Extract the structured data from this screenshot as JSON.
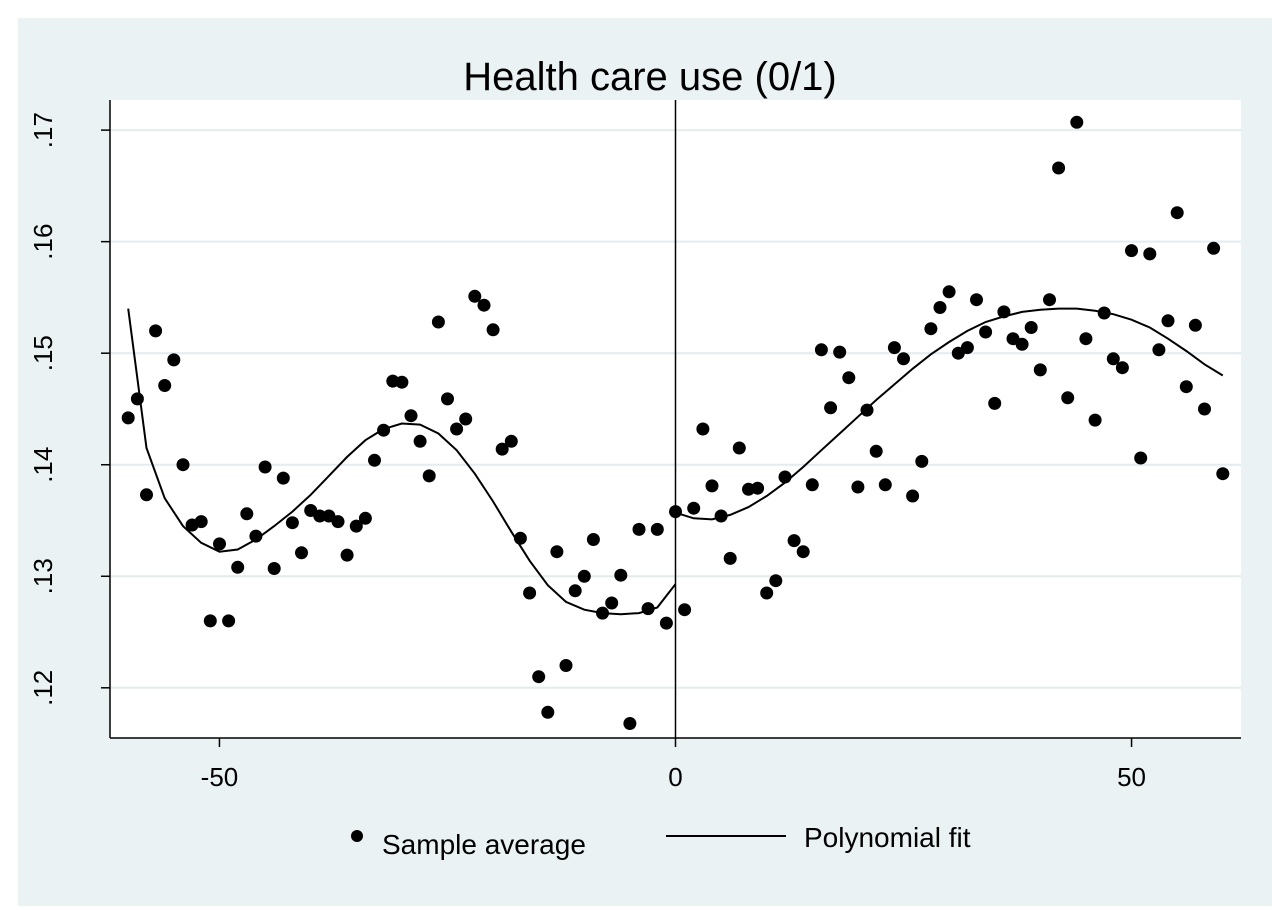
{
  "chart_data": {
    "type": "scatter",
    "title": "Health care use (0/1)",
    "xlabel": "",
    "ylabel": "",
    "xlim": [
      -62,
      62
    ],
    "ylim": [
      0.1155,
      0.1727
    ],
    "x_ticks": [
      -50,
      0,
      50
    ],
    "x_tick_labels": [
      "-50",
      "0",
      "50"
    ],
    "y_ticks": [
      0.12,
      0.13,
      0.14,
      0.15,
      0.16,
      0.17
    ],
    "y_tick_labels": [
      ".12",
      ".13",
      ".14",
      ".15",
      ".16",
      ".17"
    ],
    "y_tick_labels_rotated": true,
    "grid": "horizontal",
    "cutoff_line_x": 0,
    "legend_position": "bottom",
    "colors": {
      "background": "#eaf2f3",
      "plot_area": "#ffffff",
      "grid": "#e3ecee",
      "marks": "#000000"
    },
    "series": [
      {
        "name": "Sample average",
        "kind": "scatter",
        "points": [
          [
            -60,
            0.1442
          ],
          [
            -59,
            0.1459
          ],
          [
            -58,
            0.1373
          ],
          [
            -57,
            0.152
          ],
          [
            -56,
            0.1471
          ],
          [
            -55,
            0.1494
          ],
          [
            -54,
            0.14
          ],
          [
            -53,
            0.1346
          ],
          [
            -52,
            0.1349
          ],
          [
            -51,
            0.126
          ],
          [
            -50,
            0.1329
          ],
          [
            -49,
            0.126
          ],
          [
            -48,
            0.1308
          ],
          [
            -47,
            0.1356
          ],
          [
            -46,
            0.1336
          ],
          [
            -45,
            0.1398
          ],
          [
            -44,
            0.1307
          ],
          [
            -43,
            0.1388
          ],
          [
            -42,
            0.1348
          ],
          [
            -41,
            0.1321
          ],
          [
            -40,
            0.1359
          ],
          [
            -39,
            0.1354
          ],
          [
            -38,
            0.1354
          ],
          [
            -37,
            0.1349
          ],
          [
            -36,
            0.1319
          ],
          [
            -35,
            0.1345
          ],
          [
            -34,
            0.1352
          ],
          [
            -33,
            0.1404
          ],
          [
            -32,
            0.1431
          ],
          [
            -31,
            0.1475
          ],
          [
            -30,
            0.1474
          ],
          [
            -29,
            0.1444
          ],
          [
            -28,
            0.1421
          ],
          [
            -27,
            0.139
          ],
          [
            -26,
            0.1528
          ],
          [
            -25,
            0.1459
          ],
          [
            -24,
            0.1432
          ],
          [
            -23,
            0.1441
          ],
          [
            -22,
            0.1551
          ],
          [
            -21,
            0.1543
          ],
          [
            -20,
            0.1521
          ],
          [
            -19,
            0.1414
          ],
          [
            -18,
            0.1421
          ],
          [
            -17,
            0.1334
          ],
          [
            -16,
            0.1285
          ],
          [
            -15,
            0.121
          ],
          [
            -14,
            0.1178
          ],
          [
            -13,
            0.1322
          ],
          [
            -12,
            0.122
          ],
          [
            -11,
            0.1287
          ],
          [
            -10,
            0.13
          ],
          [
            -9,
            0.1333
          ],
          [
            -8,
            0.1267
          ],
          [
            -7,
            0.1276
          ],
          [
            -6,
            0.1301
          ],
          [
            -5,
            0.1168
          ],
          [
            -4,
            0.1342
          ],
          [
            -3,
            0.1271
          ],
          [
            -2,
            0.1342
          ],
          [
            -1,
            0.1258
          ],
          [
            0,
            0.1358
          ],
          [
            1,
            0.127
          ],
          [
            2,
            0.1361
          ],
          [
            3,
            0.1432
          ],
          [
            4,
            0.1381
          ],
          [
            5,
            0.1354
          ],
          [
            6,
            0.1316
          ],
          [
            7,
            0.1415
          ],
          [
            8,
            0.1378
          ],
          [
            9,
            0.1379
          ],
          [
            10,
            0.1285
          ],
          [
            11,
            0.1296
          ],
          [
            12,
            0.1389
          ],
          [
            13,
            0.1332
          ],
          [
            14,
            0.1322
          ],
          [
            15,
            0.1382
          ],
          [
            16,
            0.1503
          ],
          [
            17,
            0.1451
          ],
          [
            18,
            0.1501
          ],
          [
            19,
            0.1478
          ],
          [
            20,
            0.138
          ],
          [
            21,
            0.1449
          ],
          [
            22,
            0.1412
          ],
          [
            23,
            0.1382
          ],
          [
            24,
            0.1505
          ],
          [
            25,
            0.1495
          ],
          [
            26,
            0.1372
          ],
          [
            27,
            0.1403
          ],
          [
            28,
            0.1522
          ],
          [
            29,
            0.1541
          ],
          [
            30,
            0.1555
          ],
          [
            31,
            0.15
          ],
          [
            32,
            0.1505
          ],
          [
            33,
            0.1548
          ],
          [
            34,
            0.1519
          ],
          [
            35,
            0.1455
          ],
          [
            36,
            0.1537
          ],
          [
            37,
            0.1513
          ],
          [
            38,
            0.1508
          ],
          [
            39,
            0.1523
          ],
          [
            40,
            0.1485
          ],
          [
            41,
            0.1548
          ],
          [
            42,
            0.1666
          ],
          [
            43,
            0.146
          ],
          [
            44,
            0.1707
          ],
          [
            45,
            0.1513
          ],
          [
            46,
            0.144
          ],
          [
            47,
            0.1536
          ],
          [
            48,
            0.1495
          ],
          [
            49,
            0.1487
          ],
          [
            50,
            0.1592
          ],
          [
            51,
            0.1406
          ],
          [
            52,
            0.1589
          ],
          [
            53,
            0.1503
          ],
          [
            54,
            0.1529
          ],
          [
            55,
            0.1626
          ],
          [
            56,
            0.147
          ],
          [
            57,
            0.1525
          ],
          [
            58,
            0.145
          ],
          [
            59,
            0.1594
          ],
          [
            60,
            0.1392
          ]
        ]
      },
      {
        "name": "Polynomial fit",
        "kind": "line",
        "segments": [
          [
            [
              -60,
              0.154
            ],
            [
              -58,
              0.1415
            ],
            [
              -56,
              0.137
            ],
            [
              -54,
              0.1345
            ],
            [
              -52,
              0.133
            ],
            [
              -50,
              0.1322
            ],
            [
              -48,
              0.1324
            ],
            [
              -46,
              0.1333
            ],
            [
              -44,
              0.1345
            ],
            [
              -42,
              0.1358
            ],
            [
              -40,
              0.1373
            ],
            [
              -38,
              0.139
            ],
            [
              -36,
              0.1407
            ],
            [
              -34,
              0.1422
            ],
            [
              -32,
              0.1432
            ],
            [
              -30,
              0.1437
            ],
            [
              -28,
              0.1436
            ],
            [
              -26,
              0.1428
            ],
            [
              -24,
              0.1413
            ],
            [
              -22,
              0.1392
            ],
            [
              -20,
              0.1367
            ],
            [
              -18,
              0.134
            ],
            [
              -16,
              0.1314
            ],
            [
              -14,
              0.1292
            ],
            [
              -12,
              0.1277
            ],
            [
              -10,
              0.127
            ],
            [
              -8,
              0.1267
            ],
            [
              -6,
              0.1266
            ],
            [
              -4,
              0.1267
            ],
            [
              -2,
              0.1272
            ],
            [
              0,
              0.1293
            ]
          ],
          [
            [
              0,
              0.1357
            ],
            [
              2,
              0.1352
            ],
            [
              4,
              0.1351
            ],
            [
              6,
              0.1355
            ],
            [
              8,
              0.1362
            ],
            [
              10,
              0.1372
            ],
            [
              12,
              0.1384
            ],
            [
              14,
              0.1398
            ],
            [
              16,
              0.1413
            ],
            [
              18,
              0.1428
            ],
            [
              20,
              0.1443
            ],
            [
              22,
              0.1458
            ],
            [
              24,
              0.1472
            ],
            [
              26,
              0.1486
            ],
            [
              28,
              0.1499
            ],
            [
              30,
              0.151
            ],
            [
              32,
              0.152
            ],
            [
              34,
              0.1528
            ],
            [
              36,
              0.1533
            ],
            [
              38,
              0.1537
            ],
            [
              40,
              0.1539
            ],
            [
              42,
              0.154
            ],
            [
              44,
              0.154
            ],
            [
              46,
              0.1538
            ],
            [
              48,
              0.1535
            ],
            [
              50,
              0.153
            ],
            [
              52,
              0.1523
            ],
            [
              54,
              0.1513
            ],
            [
              56,
              0.1502
            ],
            [
              58,
              0.149
            ],
            [
              60,
              0.148
            ]
          ]
        ]
      }
    ]
  }
}
